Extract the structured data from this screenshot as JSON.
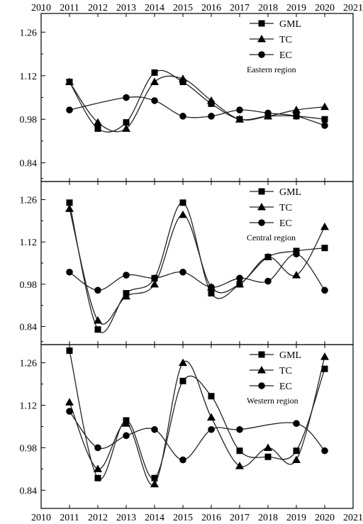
{
  "chart_data": [
    {
      "type": "line",
      "region_label": "Eastern region",
      "x": [
        2011,
        2012,
        2013,
        2014,
        2015,
        2016,
        2017,
        2018,
        2019,
        2020
      ],
      "xlim": [
        2010,
        2021
      ],
      "ylim": [
        0.78,
        1.32
      ],
      "yticks": [
        "0.84",
        "0.98",
        "1.12",
        "1.26"
      ],
      "legend_position": "top-right",
      "series": [
        {
          "name": "GML",
          "marker": "square",
          "values": [
            1.1,
            0.95,
            0.97,
            1.13,
            1.1,
            1.03,
            0.98,
            0.99,
            0.99,
            0.98
          ]
        },
        {
          "name": "TC",
          "marker": "triangle",
          "values": [
            1.1,
            0.97,
            0.95,
            1.1,
            1.11,
            1.04,
            0.98,
            0.99,
            1.01,
            1.02
          ]
        },
        {
          "name": "EC",
          "marker": "circle",
          "values": [
            1.01,
            null,
            1.05,
            1.04,
            0.99,
            0.99,
            1.01,
            1.0,
            0.99,
            0.96
          ]
        }
      ]
    },
    {
      "type": "line",
      "region_label": "Central region",
      "x": [
        2011,
        2012,
        2013,
        2014,
        2015,
        2016,
        2017,
        2018,
        2019,
        2020
      ],
      "xlim": [
        2010,
        2021
      ],
      "ylim": [
        0.78,
        1.32
      ],
      "yticks": [
        "0.84",
        "0.98",
        "1.12",
        "1.26"
      ],
      "legend_position": "top-right",
      "series": [
        {
          "name": "GML",
          "marker": "square",
          "values": [
            1.25,
            0.83,
            0.95,
            1.0,
            1.25,
            0.95,
            0.98,
            1.07,
            1.09,
            1.1
          ]
        },
        {
          "name": "TC",
          "marker": "triangle",
          "values": [
            1.23,
            0.86,
            0.94,
            0.98,
            1.21,
            0.97,
            0.98,
            1.07,
            1.01,
            1.17
          ]
        },
        {
          "name": "EC",
          "marker": "circle",
          "values": [
            1.02,
            0.96,
            1.01,
            1.0,
            1.02,
            0.97,
            1.0,
            0.99,
            1.08,
            0.96
          ]
        }
      ]
    },
    {
      "type": "line",
      "region_label": "Western region",
      "x": [
        2011,
        2012,
        2013,
        2014,
        2015,
        2016,
        2017,
        2018,
        2019,
        2020
      ],
      "xlim": [
        2010,
        2021
      ],
      "ylim": [
        0.78,
        1.32
      ],
      "yticks": [
        "0.84",
        "0.98",
        "1.12",
        "1.26"
      ],
      "xticks": [
        "2010",
        "2011",
        "2012",
        "2013",
        "2014",
        "2015",
        "2016",
        "2017",
        "2018",
        "2019",
        "2020",
        "2021"
      ],
      "legend_position": "top-right",
      "series": [
        {
          "name": "GML",
          "marker": "square",
          "values": [
            1.3,
            0.88,
            1.07,
            0.88,
            1.2,
            1.15,
            0.97,
            0.95,
            0.97,
            1.24
          ]
        },
        {
          "name": "TC",
          "marker": "triangle",
          "values": [
            1.13,
            0.91,
            1.06,
            0.86,
            1.26,
            1.08,
            0.92,
            0.98,
            0.94,
            1.28
          ]
        },
        {
          "name": "EC",
          "marker": "circle",
          "values": [
            1.1,
            0.98,
            1.02,
            1.04,
            0.94,
            1.04,
            1.04,
            null,
            1.06,
            0.97
          ]
        }
      ]
    }
  ]
}
